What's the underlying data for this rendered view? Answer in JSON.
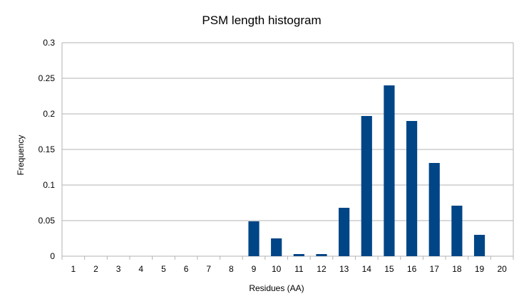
{
  "chart_data": {
    "type": "bar",
    "title": "PSM length histogram",
    "xlabel": "Residues (AA)",
    "ylabel": "Frequency",
    "categories": [
      "1",
      "2",
      "3",
      "4",
      "5",
      "6",
      "7",
      "8",
      "9",
      "10",
      "11",
      "12",
      "13",
      "14",
      "15",
      "16",
      "17",
      "18",
      "19",
      "20"
    ],
    "values": [
      0,
      0,
      0,
      0,
      0,
      0,
      0,
      0,
      0.049,
      0.025,
      0.003,
      0.003,
      0.068,
      0.197,
      0.24,
      0.19,
      0.131,
      0.071,
      0.03,
      0
    ],
    "ylim": [
      0,
      0.3
    ],
    "yticks": [
      "0",
      "0.05",
      "0.1",
      "0.15",
      "0.2",
      "0.25",
      "0.3"
    ],
    "grid": true,
    "bar_color": "#004586",
    "grid_color": "#b3b3b3"
  }
}
